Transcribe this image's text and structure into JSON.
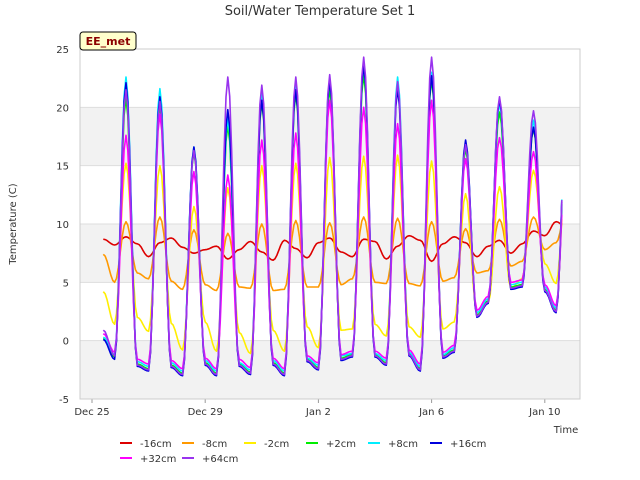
{
  "chart_data": {
    "type": "line",
    "title": "Soil/Water Temperature Set 1",
    "xlabel": "Time",
    "ylabel": "Temperature (C)",
    "station_badge": "EE_met",
    "ylim": [
      -5,
      25
    ],
    "yticks": [
      -5,
      0,
      5,
      10,
      15,
      20,
      25
    ],
    "xlim_day": [
      0,
      16.4
    ],
    "xticks": [
      {
        "day": 0,
        "label": "Dec 25"
      },
      {
        "day": 4,
        "label": "Dec 29"
      },
      {
        "day": 8,
        "label": "Jan 2"
      },
      {
        "day": 12,
        "label": "Jan 6"
      },
      {
        "day": 16,
        "label": "Jan 10"
      }
    ],
    "bands": [
      [
        -5,
        0
      ],
      [
        5,
        10
      ],
      [
        15,
        20
      ]
    ],
    "x_days": [
      0.4,
      0.8,
      1.2,
      1.6,
      2.0,
      2.4,
      2.8,
      3.2,
      3.6,
      4.0,
      4.4,
      4.8,
      5.2,
      5.6,
      6.0,
      6.4,
      6.8,
      7.2,
      7.6,
      8.0,
      8.4,
      8.8,
      9.2,
      9.6,
      10.0,
      10.4,
      10.8,
      11.2,
      11.6,
      12.0,
      12.4,
      12.8,
      13.2,
      13.6,
      14.0,
      14.4,
      14.8,
      15.2,
      15.6,
      16.0,
      16.4,
      16.8,
      17.2
    ],
    "series": [
      {
        "name": "-16cm",
        "color": "#dd0000",
        "values": [
          8.7,
          8.2,
          8.9,
          8.3,
          7.2,
          8.4,
          8.8,
          8.0,
          7.5,
          7.8,
          8.1,
          7.0,
          7.8,
          8.5,
          7.6,
          6.9,
          8.6,
          7.9,
          7.1,
          8.4,
          8.8,
          7.6,
          7.2,
          8.7,
          8.5,
          7.0,
          8.1,
          9.0,
          8.6,
          6.8,
          8.3,
          8.9,
          8.4,
          7.2,
          8.1,
          8.6,
          7.5,
          8.3,
          9.4,
          9.0,
          10.2,
          9.6,
          10.1
        ]
      },
      {
        "name": "-8cm",
        "color": "#ff9900",
        "values": [
          7.4,
          5.0,
          10.2,
          5.8,
          5.3,
          10.6,
          5.1,
          4.4,
          9.5,
          4.8,
          4.3,
          9.2,
          4.6,
          4.5,
          10.0,
          4.3,
          4.4,
          10.3,
          4.6,
          4.6,
          10.1,
          4.8,
          5.3,
          10.6,
          5.0,
          4.9,
          10.5,
          4.9,
          4.7,
          10.2,
          5.1,
          5.4,
          9.6,
          5.8,
          6.0,
          10.4,
          6.4,
          6.8,
          10.6,
          7.8,
          8.4,
          11.8,
          9.6
        ]
      },
      {
        "name": "-2cm",
        "color": "#ffee00",
        "values": [
          4.2,
          1.4,
          15.2,
          2.0,
          0.8,
          15.0,
          1.5,
          -0.8,
          11.5,
          1.6,
          -0.9,
          13.1,
          0.7,
          -1.1,
          15.0,
          0.9,
          -0.9,
          15.2,
          1.2,
          -0.6,
          15.7,
          0.9,
          1.0,
          15.8,
          1.4,
          0.4,
          15.9,
          1.2,
          0.3,
          15.4,
          1.0,
          1.6,
          12.6,
          2.4,
          3.2,
          13.2,
          4.5,
          5.3,
          14.6,
          6.6,
          4.9,
          15.9,
          6.6
        ]
      },
      {
        "name": "+2cm",
        "color": "#00ee00",
        "values": [
          0.2,
          -1.4,
          20.8,
          -2.0,
          -2.4,
          20.2,
          -2.1,
          -2.8,
          16.2,
          -1.9,
          -2.8,
          18.5,
          -2.0,
          -2.7,
          20.4,
          -1.9,
          -2.8,
          21.2,
          -1.6,
          -2.3,
          21.6,
          -1.5,
          -1.2,
          22.8,
          -1.2,
          -1.9,
          22.0,
          -1.1,
          -2.4,
          22.4,
          -1.3,
          -0.8,
          16.5,
          2.2,
          3.4,
          19.6,
          4.6,
          4.8,
          18.2,
          4.4,
          2.6,
          20.8,
          3.8
        ]
      },
      {
        "name": "+8cm",
        "color": "#00eeff",
        "values": [
          0.3,
          -1.2,
          22.6,
          -1.8,
          -2.2,
          21.6,
          -1.9,
          -2.6,
          16.6,
          -1.7,
          -2.6,
          19.1,
          -1.9,
          -2.5,
          21.3,
          -1.7,
          -2.6,
          21.8,
          -1.5,
          -2.1,
          22.4,
          -1.3,
          -1.1,
          23.6,
          -1.1,
          -1.7,
          22.6,
          -1.0,
          -2.2,
          23.0,
          -1.2,
          -0.6,
          16.9,
          2.4,
          3.6,
          20.4,
          4.8,
          5.0,
          18.9,
          4.6,
          2.8,
          21.4,
          4.0
        ]
      },
      {
        "name": "+16cm",
        "color": "#0000dd",
        "values": [
          0.1,
          -1.6,
          22.1,
          -2.2,
          -2.6,
          20.9,
          -2.3,
          -3.0,
          16.6,
          -2.1,
          -3.0,
          19.8,
          -2.2,
          -2.9,
          20.6,
          -2.1,
          -3.0,
          21.5,
          -1.8,
          -2.5,
          22.3,
          -1.7,
          -1.4,
          23.6,
          -1.4,
          -2.1,
          21.6,
          -1.3,
          -2.6,
          22.7,
          -1.5,
          -1.0,
          17.2,
          2.0,
          3.2,
          20.7,
          4.4,
          4.6,
          18.3,
          4.2,
          2.4,
          21.4,
          3.6
        ]
      },
      {
        "name": "+32cm",
        "color": "#ff00ff",
        "values": [
          0.6,
          -1.0,
          17.6,
          -1.6,
          -2.0,
          19.4,
          -1.7,
          -2.4,
          14.5,
          -1.5,
          -2.4,
          14.2,
          -1.6,
          -2.3,
          17.2,
          -1.5,
          -2.4,
          17.8,
          -1.3,
          -1.9,
          20.6,
          -1.2,
          -0.9,
          20.0,
          -0.9,
          -1.5,
          18.6,
          -0.8,
          -2.0,
          20.6,
          -1.0,
          -0.4,
          15.6,
          2.6,
          3.8,
          17.4,
          5.0,
          5.2,
          16.2,
          4.8,
          3.0,
          18.6,
          4.2
        ]
      },
      {
        "name": "+64cm",
        "color": "#9933ee",
        "values": [
          0.9,
          -1.3,
          21.5,
          -2.1,
          -2.5,
          20.5,
          -2.2,
          -2.9,
          16.3,
          -2.0,
          -2.9,
          22.6,
          -2.1,
          -2.8,
          21.9,
          -2.0,
          -2.9,
          22.6,
          -1.7,
          -2.4,
          22.8,
          -1.6,
          -1.3,
          24.3,
          -1.3,
          -2.0,
          22.2,
          -1.2,
          -2.5,
          24.3,
          -1.4,
          -0.9,
          16.8,
          2.1,
          3.3,
          20.9,
          4.5,
          4.7,
          19.7,
          4.3,
          2.5,
          21.6,
          3.7
        ]
      }
    ],
    "legend": {
      "placement": "bottom",
      "rows": [
        [
          "-16cm",
          "-8cm",
          "-2cm",
          "+2cm",
          "+8cm",
          "+16cm"
        ],
        [
          "+32cm",
          "+64cm"
        ]
      ]
    }
  }
}
